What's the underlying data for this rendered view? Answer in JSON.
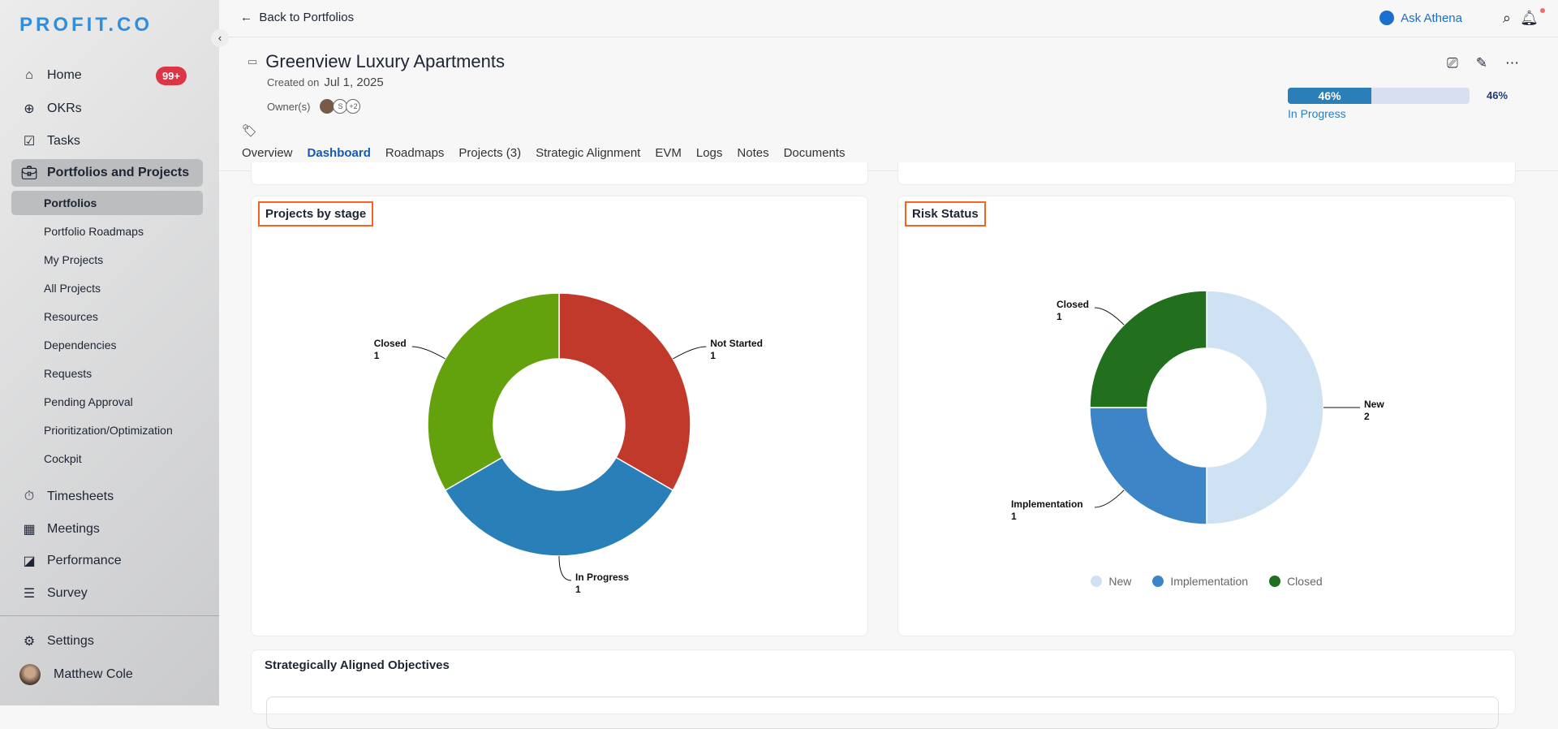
{
  "sidebar": {
    "logo": "PROFIT.CO",
    "home_badge": "99+",
    "items": [
      {
        "label": "Home",
        "icon": "home-icon"
      },
      {
        "label": "OKRs",
        "icon": "target-icon"
      },
      {
        "label": "Tasks",
        "icon": "clipboard-icon"
      },
      {
        "label": "Portfolios and Projects",
        "icon": "briefcase-icon"
      }
    ],
    "sub_items": [
      "Portfolios",
      "Portfolio Roadmaps",
      "My Projects",
      "All Projects",
      "Resources",
      "Dependencies",
      "Requests",
      "Pending Approval",
      "Prioritization/Optimization",
      "Cockpit"
    ],
    "more_items": [
      {
        "label": "Timesheets"
      },
      {
        "label": "Meetings"
      },
      {
        "label": "Performance"
      },
      {
        "label": "Survey"
      }
    ],
    "settings": "Settings",
    "user": "Matthew Cole"
  },
  "topbar": {
    "back": "Back to Portfolios",
    "ask": "Ask Athena"
  },
  "header": {
    "title": "Greenview Luxury Apartments",
    "created_label": "Created on",
    "created_date": "Jul 1, 2025",
    "owners_label": "Owner(s)",
    "owners_more": "+2",
    "owner_initial": "S",
    "progress": 46,
    "progress_text": "46%",
    "status": "In Progress"
  },
  "tabs": [
    "Overview",
    "Dashboard",
    "Roadmaps",
    "Projects (3)",
    "Strategic Alignment",
    "EVM",
    "Logs",
    "Notes",
    "Documents"
  ],
  "cards": {
    "stage_title": "Projects by stage",
    "risk_title": "Risk Status",
    "objectives_title": "Strategically Aligned Objectives"
  },
  "chart_data": [
    {
      "type": "pie",
      "title": "Projects by stage",
      "categories": [
        "Not Started",
        "In Progress",
        "Closed"
      ],
      "values": [
        1,
        1,
        1
      ],
      "colors": [
        "#c0392b",
        "#2980b9",
        "#63a20d"
      ]
    },
    {
      "type": "pie",
      "title": "Risk Status",
      "categories": [
        "New",
        "Implementation",
        "Closed"
      ],
      "values": [
        2,
        1,
        1
      ],
      "colors": [
        "#cfe2f3",
        "#3d85c6",
        "#226f1e"
      ],
      "legend": "bottom"
    }
  ]
}
